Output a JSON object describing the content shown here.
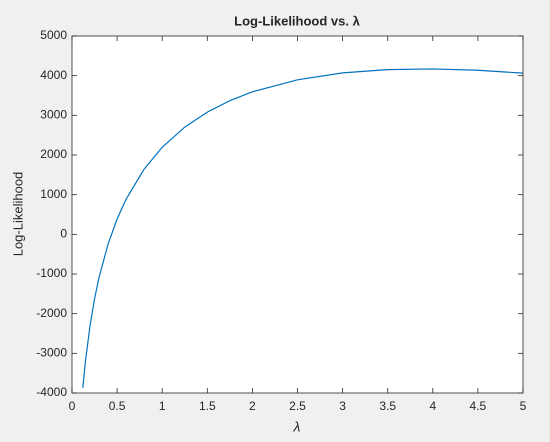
{
  "chart_data": {
    "type": "line",
    "title": "Log-Likelihood vs. λ",
    "x_label": "λ",
    "y_label": "Log-Likelihood",
    "x": [
      0.12,
      0.15,
      0.2,
      0.25,
      0.3,
      0.4,
      0.5,
      0.6,
      0.8,
      1,
      1.25,
      1.5,
      1.75,
      2,
      2.5,
      3,
      3.5,
      4,
      4.5,
      5
    ],
    "series": [
      {
        "name": "Log-Likelihood",
        "color": "#0072bd",
        "values": [
          -3869,
          -3180,
          -2300,
          -1627,
          -1085,
          -246,
          386,
          887,
          1644,
          2194,
          2703,
          3081,
          3370,
          3592,
          3896,
          4070,
          4153,
          4170,
          4137,
          4064
        ]
      }
    ],
    "xlim": [
      0,
      5
    ],
    "xticks": [
      0,
      0.5,
      1,
      1.5,
      2,
      2.5,
      3,
      3.5,
      4,
      4.5,
      5
    ],
    "ylim": [
      -4000,
      5000
    ],
    "yticks": [
      -4000,
      -3000,
      -2000,
      -1000,
      0,
      1000,
      2000,
      3000,
      4000,
      5000
    ],
    "grid": false
  }
}
